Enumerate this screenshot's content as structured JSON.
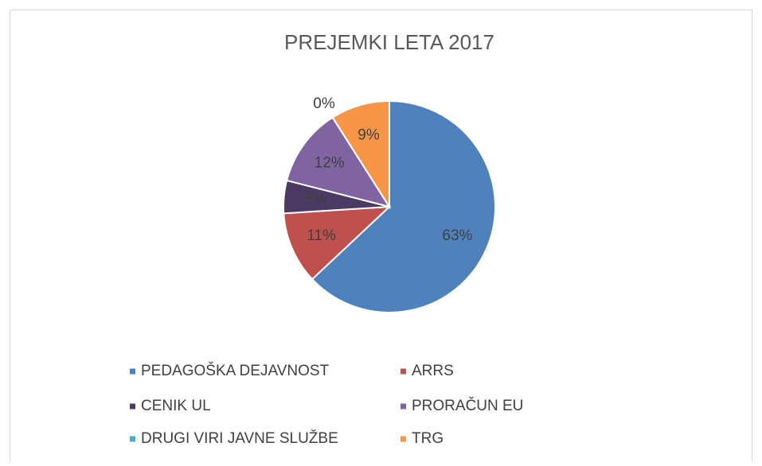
{
  "chart_data": {
    "type": "pie",
    "title": "PREJEMKI LETA 2017",
    "categories": [
      "PEDAGOŠKA DEJAVNOST",
      "ARRS",
      "CENIK UL",
      "PRORAČUN EU",
      "DRUGI VIRI JAVNE SLUŽBE",
      "TRG"
    ],
    "values": [
      63,
      11,
      5,
      12,
      0,
      9
    ],
    "value_labels": [
      "63%",
      "11%",
      "5%",
      "12%",
      "0%",
      "9%"
    ],
    "colors": [
      "#4f81bd",
      "#c0504d",
      "#4b3a63",
      "#8064a2",
      "#4bacc6",
      "#f79646"
    ],
    "legend": "bottom"
  }
}
